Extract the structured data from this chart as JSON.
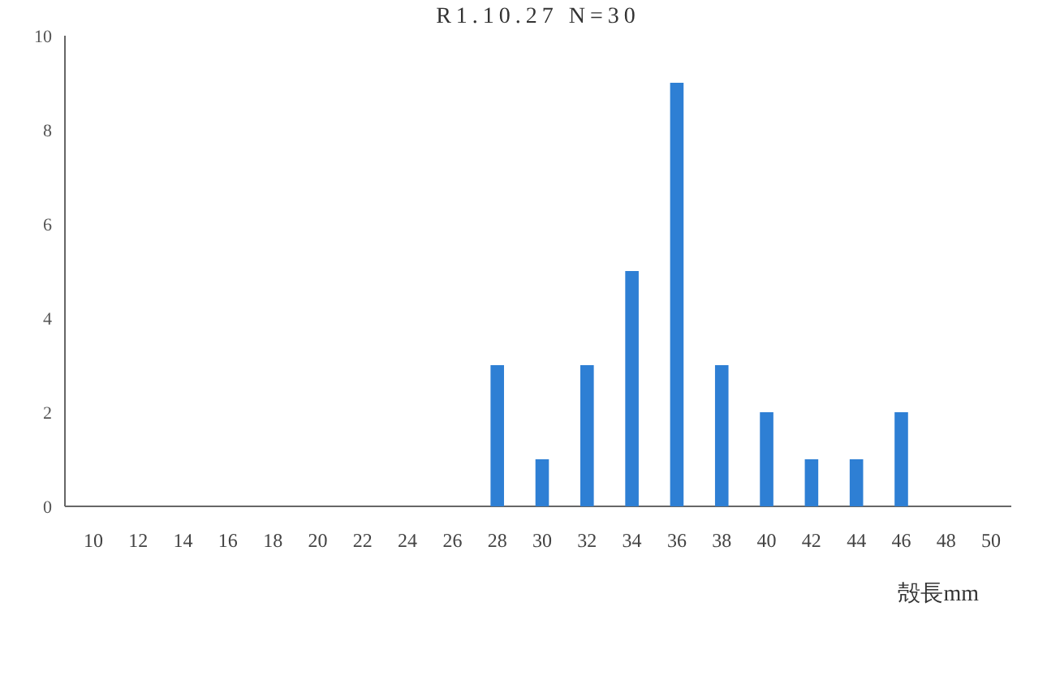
{
  "chart_data": {
    "type": "bar",
    "title": "R1.10.27 N=30",
    "xlabel": "殻長mm",
    "categories": [
      "10",
      "12",
      "14",
      "16",
      "18",
      "20",
      "22",
      "24",
      "26",
      "28",
      "30",
      "32",
      "34",
      "36",
      "38",
      "40",
      "42",
      "44",
      "46",
      "48",
      "50"
    ],
    "values": [
      0,
      0,
      0,
      0,
      0,
      0,
      0,
      0,
      0,
      3,
      1,
      3,
      5,
      9,
      3,
      2,
      1,
      1,
      2,
      0,
      0
    ],
    "color": "#2e7fd4",
    "ylim": [
      0,
      10
    ],
    "yticks": [
      0,
      2,
      4,
      6,
      8,
      10
    ],
    "grid": false
  }
}
